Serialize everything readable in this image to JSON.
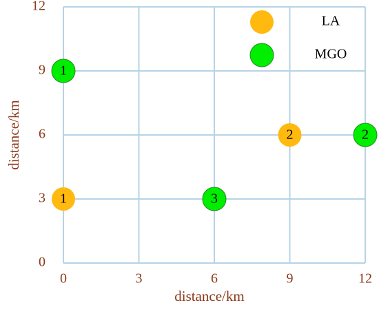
{
  "chart_data": {
    "type": "scatter",
    "xlabel": "distance/km",
    "ylabel": "distance/km",
    "xlim": [
      0,
      12
    ],
    "ylim": [
      0,
      12
    ],
    "xticks": [
      0,
      3,
      6,
      9,
      12
    ],
    "yticks": [
      0,
      3,
      6,
      9,
      12
    ],
    "grid": true,
    "legend": "upper right",
    "series": [
      {
        "name": "LA",
        "color": "#ffb90f",
        "x": [
          0,
          9
        ],
        "y": [
          3,
          6
        ],
        "point_labels": [
          "1",
          "2"
        ]
      },
      {
        "name": "MGO",
        "color": "#00ee00",
        "x": [
          0,
          6,
          12
        ],
        "y": [
          9,
          3,
          6
        ],
        "point_labels": [
          "1",
          "3",
          "2"
        ]
      }
    ]
  }
}
